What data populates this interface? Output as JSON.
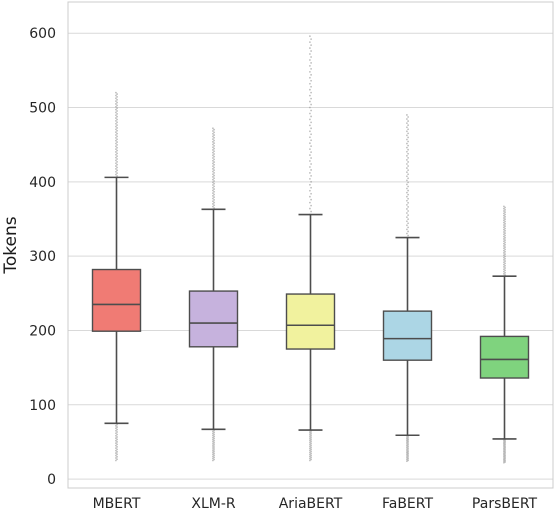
{
  "chart_data": {
    "type": "box",
    "title": "",
    "xlabel": "",
    "ylabel": "Tokens",
    "ylim": [
      -12,
      642
    ],
    "yticks": [
      0,
      100,
      200,
      300,
      400,
      500,
      600
    ],
    "grid": "horizontal",
    "categories": [
      "MBERT",
      "XLM-R",
      "AriaBERT",
      "FaBERT",
      "ParsBERT"
    ],
    "boxes": [
      {
        "label": "MBERT",
        "whisker_low": 75,
        "q1": 199,
        "median": 235,
        "q3": 282,
        "whisker_high": 406,
        "min": 25,
        "max": 520,
        "color": "#f07b74"
      },
      {
        "label": "XLM-R",
        "whisker_low": 67,
        "q1": 178,
        "median": 210,
        "q3": 253,
        "whisker_high": 363,
        "min": 25,
        "max": 472,
        "color": "#c6b2dd"
      },
      {
        "label": "AriaBERT",
        "whisker_low": 66,
        "q1": 175,
        "median": 207,
        "q3": 249,
        "whisker_high": 356,
        "min": 25,
        "max": 596,
        "color": "#f1f29e"
      },
      {
        "label": "FaBERT",
        "whisker_low": 59,
        "q1": 160,
        "median": 189,
        "q3": 226,
        "whisker_high": 325,
        "min": 24,
        "max": 490,
        "color": "#acd6e5"
      },
      {
        "label": "ParsBERT",
        "whisker_low": 54,
        "q1": 136,
        "median": 161,
        "q3": 192,
        "whisker_high": 273,
        "min": 22,
        "max": 367,
        "color": "#7fd37e"
      }
    ]
  }
}
